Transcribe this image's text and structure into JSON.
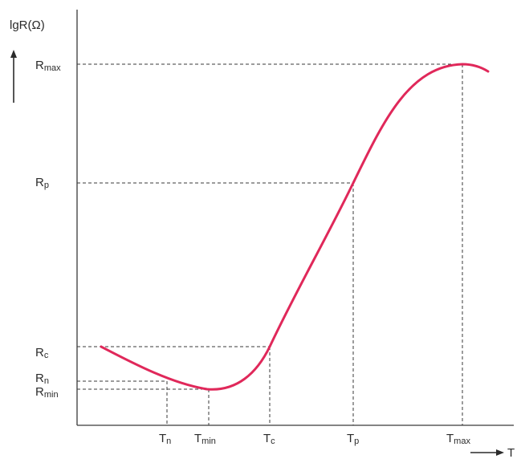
{
  "diagram": {
    "y_axis_label": "lgR(Ω)",
    "x_axis_label": "T",
    "curve_color": "#e0285a",
    "y_levels": [
      {
        "id": "rmax",
        "main": "R",
        "sub": "max"
      },
      {
        "id": "rp",
        "main": "R",
        "sub": "p"
      },
      {
        "id": "rc",
        "main": "R",
        "sub": "c"
      },
      {
        "id": "rn",
        "main": "R",
        "sub": "n"
      },
      {
        "id": "rmin",
        "main": "R",
        "sub": "min"
      }
    ],
    "x_levels": [
      {
        "id": "tn",
        "main": "T",
        "sub": "n"
      },
      {
        "id": "tmin",
        "main": "T",
        "sub": "min"
      },
      {
        "id": "tc",
        "main": "T",
        "sub": "c"
      },
      {
        "id": "tp",
        "main": "T",
        "sub": "p"
      },
      {
        "id": "tmax",
        "main": "T",
        "sub": "max"
      }
    ]
  }
}
